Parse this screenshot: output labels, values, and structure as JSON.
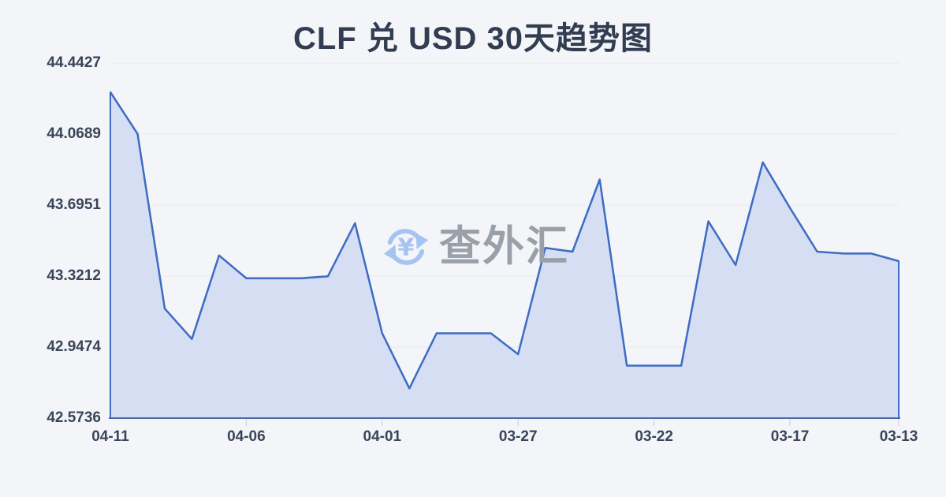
{
  "page": {
    "background_color": "#f4f5f8"
  },
  "title": {
    "text": "CLF 兑 USD 30天趋势图",
    "color": "#323d52"
  },
  "watermark": {
    "text": "查外汇",
    "currency_symbol": "¥",
    "icon": "currency-exchange-icon",
    "icon_color": "#a6c4f2",
    "text_color": "#9aa0a9"
  },
  "chart_data": {
    "type": "area",
    "title": "CLF 兑 USD 30天趋势图",
    "x": [
      "04-11",
      "04-10",
      "04-09",
      "04-08",
      "04-07",
      "04-06",
      "04-05",
      "04-04",
      "04-03",
      "04-02",
      "04-01",
      "03-31",
      "03-30",
      "03-29",
      "03-28",
      "03-27",
      "03-26",
      "03-25",
      "03-24",
      "03-23",
      "03-22",
      "03-21",
      "03-20",
      "03-19",
      "03-18",
      "03-17",
      "03-16",
      "03-15",
      "03-14",
      "03-13"
    ],
    "values": [
      44.29,
      44.07,
      43.15,
      42.99,
      43.43,
      43.31,
      43.31,
      43.31,
      43.32,
      43.6,
      43.02,
      42.73,
      43.02,
      43.02,
      43.02,
      42.91,
      43.47,
      43.45,
      43.83,
      42.85,
      42.85,
      42.85,
      43.61,
      43.38,
      43.92,
      43.68,
      43.45,
      43.44,
      43.44,
      43.4
    ],
    "y_ticks": [
      "44.4427",
      "44.0689",
      "43.6951",
      "43.3212",
      "42.9474",
      "42.5736"
    ],
    "x_tick_labels": [
      "04-11",
      "04-06",
      "04-01",
      "03-27",
      "03-22",
      "03-17",
      "03-13"
    ],
    "x_tick_indices": [
      0,
      5,
      10,
      15,
      20,
      25,
      29
    ],
    "ylim": [
      42.5736,
      44.4427
    ],
    "xlabel": "",
    "ylabel": "",
    "grid": true,
    "legend": false,
    "line_color": "#3e6cc4",
    "fill_color": "#d6def4",
    "axis_line_color": "#4a6da3",
    "gridline_color": "#e6e9f0",
    "tick_color": "#d8dbe1",
    "label_color": "#3a445a"
  }
}
